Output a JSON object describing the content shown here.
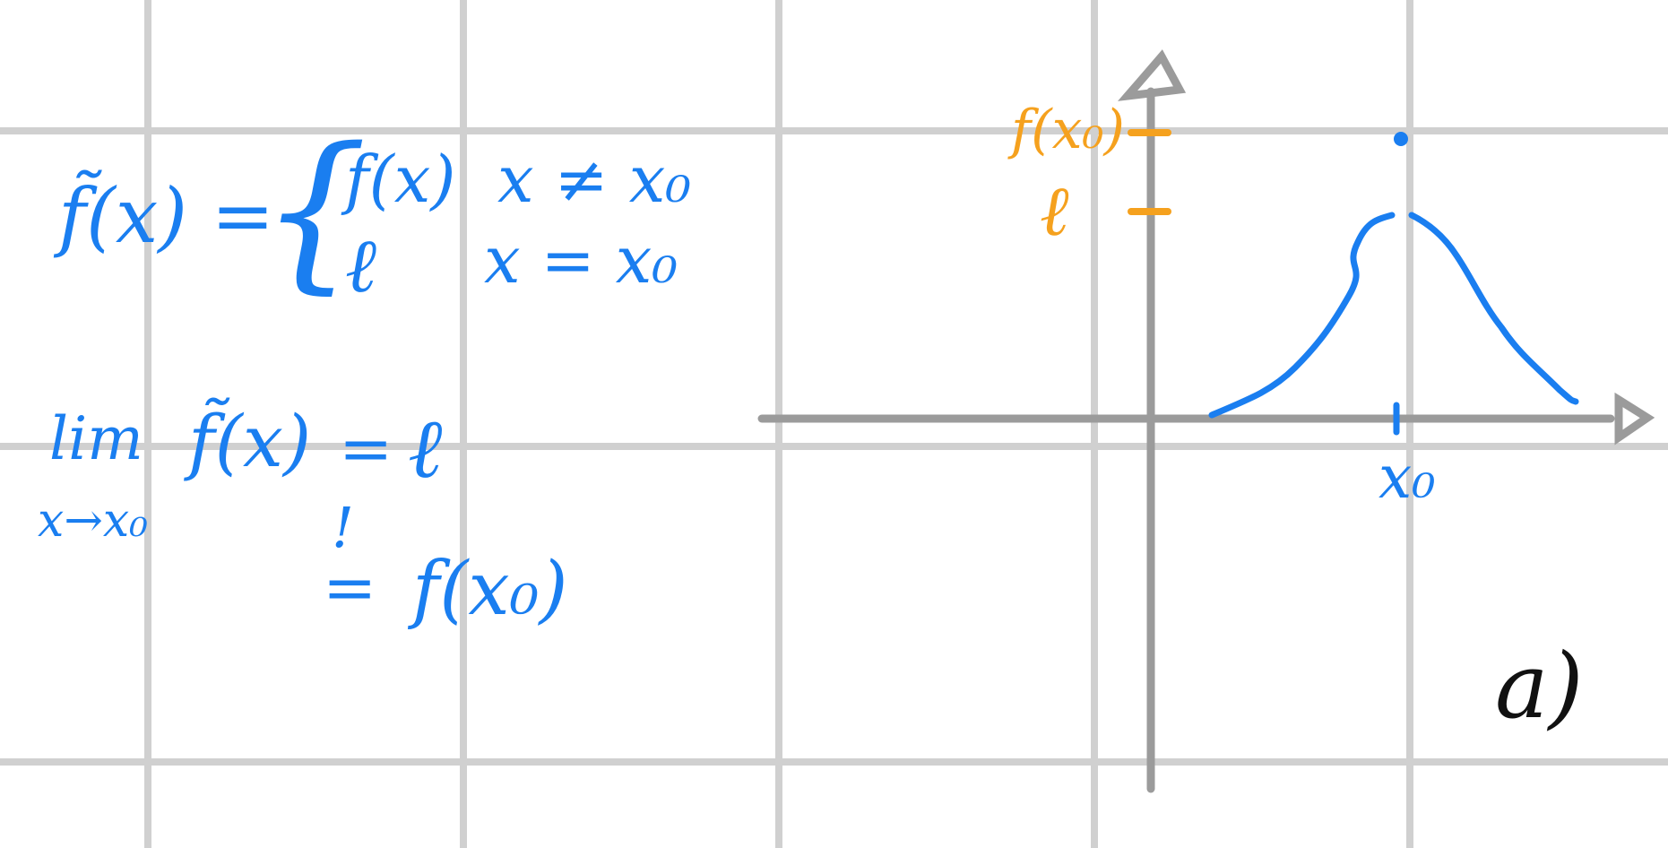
{
  "colors": {
    "background": "#ffffff",
    "grid": "#d0d0d0",
    "axes": "#9b9b9b",
    "blue_ink": "#1a7ef0",
    "orange_ink": "#f5a11e",
    "black_ink": "#111111"
  },
  "definition": {
    "lhs": "f̃(x) =",
    "case1_value": "f(x)",
    "case1_condition": "x ≠ x₀",
    "case2_value": "ℓ",
    "case2_condition": "x = x₀"
  },
  "limit": {
    "lim": "lim",
    "subscript": "x→x₀",
    "function": "f̃(x)",
    "equals1": "=",
    "result": "ℓ",
    "not_equal_mark": "!",
    "equals2": "=",
    "value_at_point": "f(x₀)"
  },
  "graph": {
    "y_label_top": "f(x₀)",
    "y_label_limit": "ℓ",
    "x_label": "x₀"
  },
  "part_label": "a)"
}
